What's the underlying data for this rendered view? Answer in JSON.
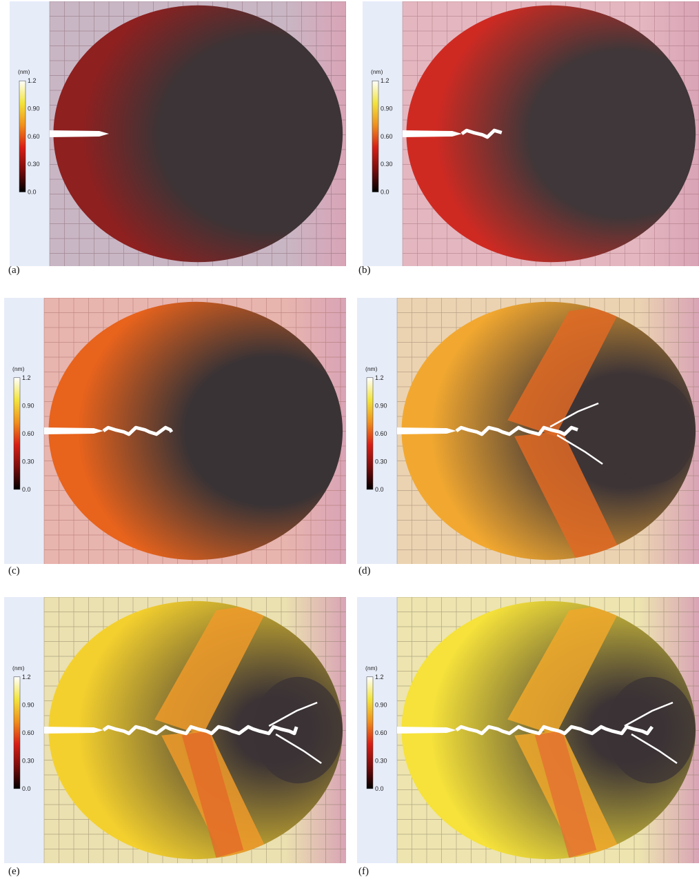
{
  "figure": {
    "colorbar": {
      "unit": "(nm)",
      "ticks": [
        "1.2",
        "0.90",
        "0.60",
        "0.30",
        "0.0"
      ],
      "stops": [
        "#ffffff",
        "#f2e43c",
        "#f08f1c",
        "#d81e16",
        "#7a0c0c",
        "#000000"
      ]
    },
    "panels": [
      {
        "label": "(a)",
        "bg": "#c9b6c4",
        "edge": "#8e2020",
        "core": "#3c3436",
        "grid": "#7f5f6a",
        "crack_tip": 0.22,
        "band": null,
        "band2": null
      },
      {
        "label": "(b)",
        "bg": "#e4b7c0",
        "edge": "#cf2a22",
        "core": "#3f3739",
        "grid": "#9b6670",
        "crack_tip": 0.38,
        "band": null,
        "band2": null
      },
      {
        "label": "(c)",
        "bg": "#e8b4ae",
        "edge": "#e8631c",
        "core": "#3a3335",
        "grid": "#a0665e",
        "crack_tip": 0.48,
        "band": null,
        "band2": null
      },
      {
        "label": "(d)",
        "bg": "#ebd3b2",
        "edge": "#f2a830",
        "core": "#3d3436",
        "grid": "#8c7660",
        "crack_tip": 0.68,
        "band": "#e06a24",
        "band2": null
      },
      {
        "label": "(e)",
        "bg": "#ebe0b0",
        "edge": "#f4d02e",
        "core": "#3b3335",
        "grid": "#7f745a",
        "crack_tip": 0.95,
        "band": "#ee9a2a",
        "band2": "#e36a28"
      },
      {
        "label": "(f)",
        "bg": "#ede4b0",
        "edge": "#f6e23a",
        "core": "#3b3335",
        "grid": "#7f7458",
        "crack_tip": 0.96,
        "band": "#f0a82c",
        "band2": "#e57030"
      }
    ]
  }
}
